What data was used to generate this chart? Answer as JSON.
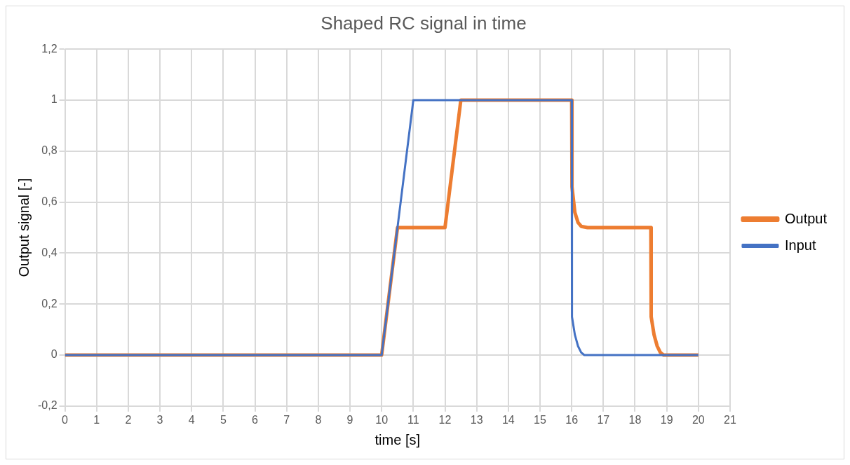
{
  "chart_data": {
    "type": "line",
    "title": "Shaped RC signal in time",
    "xlabel": "time [s]",
    "ylabel": "Output signal [-]",
    "xlim": [
      0,
      21
    ],
    "xticks": [
      0,
      1,
      2,
      3,
      4,
      5,
      6,
      7,
      8,
      9,
      10,
      11,
      12,
      13,
      14,
      15,
      16,
      17,
      18,
      19,
      20,
      21
    ],
    "ylim": [
      -0.2,
      1.2
    ],
    "yticks": [
      {
        "value": -0.2,
        "label": "-0,2"
      },
      0,
      {
        "value": 0.2,
        "label": "0,2"
      },
      {
        "value": 0.4,
        "label": "0,4"
      },
      {
        "value": 0.6,
        "label": "0,6"
      },
      {
        "value": 0.8,
        "label": "0,8"
      },
      1,
      {
        "value": 1.2,
        "label": "1,2"
      }
    ],
    "grid": true,
    "legend": "right",
    "marker": "none",
    "line_style": "solid",
    "series": [
      {
        "name": "Output",
        "color": "#ed7d31",
        "x": [
          0,
          10,
          10.5,
          12,
          12.5,
          16,
          16.01,
          16.1,
          16.2,
          16.3,
          16.5,
          18.5,
          18.51,
          18.6,
          18.7,
          18.8,
          18.9,
          20
        ],
        "values": [
          0,
          0,
          0.5,
          0.5,
          1,
          1,
          0.66,
          0.56,
          0.52,
          0.505,
          0.5,
          0.5,
          0.15,
          0.08,
          0.035,
          0.01,
          0,
          0
        ]
      },
      {
        "name": "Input",
        "color": "#4472c4",
        "x": [
          0,
          10,
          11,
          16,
          16.01,
          16.1,
          16.2,
          16.3,
          16.4,
          20
        ],
        "values": [
          0,
          0,
          1,
          1,
          0.15,
          0.08,
          0.035,
          0.01,
          0,
          0
        ]
      }
    ]
  }
}
